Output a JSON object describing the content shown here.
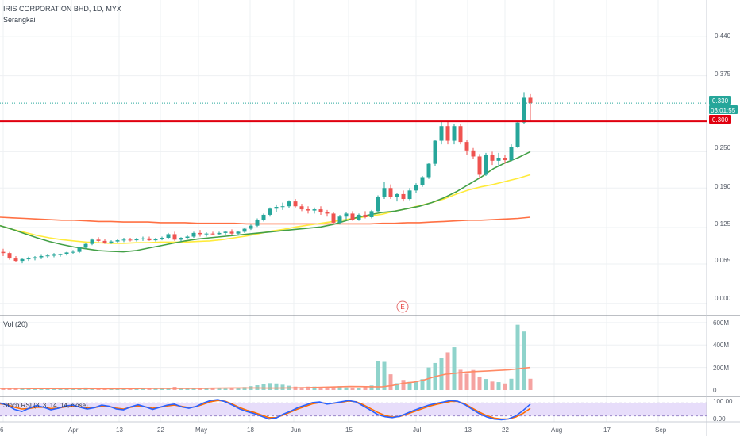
{
  "header": {
    "symbol_title": "IRIS CORPORATION BHD, 1D, MYX",
    "chart_style": "Serangkai"
  },
  "price_panel": {
    "y_ticks": [
      "0.440",
      "0.375",
      "0.250",
      "0.190",
      "0.125",
      "0.065",
      "0.000"
    ],
    "last_price_label": "0.330",
    "countdown_label": "03:01:55",
    "resistance_label": "0.300",
    "earnings_marker": "E"
  },
  "volume_panel": {
    "label": "Vol (20)",
    "y_ticks": [
      "600M",
      "400M",
      "200M",
      "0"
    ]
  },
  "stoch_panel": {
    "label": "Stoch RSI (3, 3, 14, 14, close)",
    "y_ticks": [
      "100.00",
      "0.00"
    ]
  },
  "time_axis": {
    "ticks": [
      "6",
      "Apr",
      "13",
      "22",
      "May",
      "18",
      "Jun",
      "15",
      "Jul",
      "13",
      "22",
      "Aug",
      "17",
      "Sep"
    ]
  },
  "colors": {
    "up": "#26a69a",
    "down": "#ef5350",
    "ma_fast": "#43a047",
    "ma_mid": "#ffeb3b",
    "ma_slow": "#ff7043",
    "resistance": "#e0000f",
    "last_price": "#26a69a",
    "stoch_k": "#2962ff",
    "stoch_d": "#ff6d00",
    "stoch_band": "#b39ddb"
  },
  "chart_data": {
    "type": "candlestick",
    "price_range": [
      -0.02,
      0.5
    ],
    "resistance_level": 0.3,
    "last_price": 0.33,
    "candles": [
      [
        0.085,
        0.09,
        0.078,
        0.083
      ],
      [
        0.083,
        0.085,
        0.072,
        0.074
      ],
      [
        0.074,
        0.078,
        0.068,
        0.07
      ],
      [
        0.07,
        0.075,
        0.066,
        0.073
      ],
      [
        0.073,
        0.077,
        0.07,
        0.074
      ],
      [
        0.074,
        0.078,
        0.071,
        0.076
      ],
      [
        0.076,
        0.08,
        0.073,
        0.078
      ],
      [
        0.078,
        0.081,
        0.075,
        0.079
      ],
      [
        0.079,
        0.083,
        0.076,
        0.08
      ],
      [
        0.08,
        0.082,
        0.077,
        0.081
      ],
      [
        0.081,
        0.085,
        0.079,
        0.084
      ],
      [
        0.084,
        0.088,
        0.081,
        0.085
      ],
      [
        0.085,
        0.093,
        0.083,
        0.092
      ],
      [
        0.092,
        0.1,
        0.09,
        0.098
      ],
      [
        0.098,
        0.107,
        0.096,
        0.105
      ],
      [
        0.105,
        0.109,
        0.101,
        0.103
      ],
      [
        0.103,
        0.106,
        0.098,
        0.1
      ],
      [
        0.1,
        0.104,
        0.098,
        0.102
      ],
      [
        0.102,
        0.106,
        0.1,
        0.104
      ],
      [
        0.104,
        0.108,
        0.101,
        0.105
      ],
      [
        0.105,
        0.108,
        0.102,
        0.104
      ],
      [
        0.104,
        0.108,
        0.102,
        0.106
      ],
      [
        0.106,
        0.11,
        0.103,
        0.107
      ],
      [
        0.107,
        0.11,
        0.103,
        0.104
      ],
      [
        0.104,
        0.108,
        0.102,
        0.106
      ],
      [
        0.106,
        0.11,
        0.104,
        0.108
      ],
      [
        0.108,
        0.116,
        0.106,
        0.114
      ],
      [
        0.114,
        0.118,
        0.103,
        0.105
      ],
      [
        0.105,
        0.109,
        0.102,
        0.108
      ],
      [
        0.108,
        0.112,
        0.106,
        0.11
      ],
      [
        0.11,
        0.118,
        0.108,
        0.116
      ],
      [
        0.116,
        0.121,
        0.11,
        0.114
      ],
      [
        0.114,
        0.117,
        0.11,
        0.115
      ],
      [
        0.115,
        0.118,
        0.112,
        0.114
      ],
      [
        0.114,
        0.118,
        0.112,
        0.116
      ],
      [
        0.116,
        0.119,
        0.113,
        0.118
      ],
      [
        0.118,
        0.122,
        0.112,
        0.115
      ],
      [
        0.115,
        0.119,
        0.113,
        0.118
      ],
      [
        0.118,
        0.125,
        0.116,
        0.123
      ],
      [
        0.123,
        0.13,
        0.121,
        0.128
      ],
      [
        0.128,
        0.14,
        0.126,
        0.138
      ],
      [
        0.138,
        0.148,
        0.135,
        0.146
      ],
      [
        0.146,
        0.158,
        0.143,
        0.156
      ],
      [
        0.156,
        0.163,
        0.15,
        0.159
      ],
      [
        0.159,
        0.166,
        0.154,
        0.16
      ],
      [
        0.16,
        0.17,
        0.157,
        0.168
      ],
      [
        0.168,
        0.172,
        0.158,
        0.16
      ],
      [
        0.16,
        0.164,
        0.152,
        0.155
      ],
      [
        0.155,
        0.16,
        0.148,
        0.153
      ],
      [
        0.153,
        0.158,
        0.148,
        0.155
      ],
      [
        0.155,
        0.16,
        0.146,
        0.15
      ],
      [
        0.15,
        0.154,
        0.143,
        0.148
      ],
      [
        0.148,
        0.15,
        0.13,
        0.133
      ],
      [
        0.133,
        0.146,
        0.13,
        0.143
      ],
      [
        0.143,
        0.15,
        0.138,
        0.148
      ],
      [
        0.148,
        0.152,
        0.136,
        0.138
      ],
      [
        0.138,
        0.148,
        0.136,
        0.146
      ],
      [
        0.146,
        0.152,
        0.14,
        0.142
      ],
      [
        0.142,
        0.154,
        0.14,
        0.152
      ],
      [
        0.152,
        0.178,
        0.15,
        0.176
      ],
      [
        0.176,
        0.2,
        0.172,
        0.19
      ],
      [
        0.19,
        0.196,
        0.172,
        0.175
      ],
      [
        0.175,
        0.182,
        0.168,
        0.18
      ],
      [
        0.18,
        0.186,
        0.168,
        0.172
      ],
      [
        0.172,
        0.19,
        0.17,
        0.186
      ],
      [
        0.186,
        0.198,
        0.182,
        0.195
      ],
      [
        0.195,
        0.21,
        0.192,
        0.208
      ],
      [
        0.208,
        0.232,
        0.205,
        0.23
      ],
      [
        0.23,
        0.27,
        0.226,
        0.268
      ],
      [
        0.268,
        0.3,
        0.262,
        0.292
      ],
      [
        0.292,
        0.3,
        0.262,
        0.268
      ],
      [
        0.268,
        0.296,
        0.262,
        0.292
      ],
      [
        0.292,
        0.296,
        0.262,
        0.266
      ],
      [
        0.266,
        0.27,
        0.245,
        0.252
      ],
      [
        0.252,
        0.256,
        0.238,
        0.242
      ],
      [
        0.242,
        0.246,
        0.205,
        0.212
      ],
      [
        0.212,
        0.248,
        0.21,
        0.245
      ],
      [
        0.245,
        0.25,
        0.228,
        0.235
      ],
      [
        0.235,
        0.248,
        0.226,
        0.24
      ],
      [
        0.24,
        0.245,
        0.23,
        0.236
      ],
      [
        0.236,
        0.262,
        0.234,
        0.258
      ],
      [
        0.258,
        0.3,
        0.256,
        0.298
      ],
      [
        0.298,
        0.348,
        0.296,
        0.34
      ],
      [
        0.34,
        0.346,
        0.3,
        0.33
      ]
    ],
    "ma_fast": [
      0.128,
      0.122,
      0.115,
      0.108,
      0.102,
      0.097,
      0.093,
      0.09,
      0.087,
      0.086,
      0.085,
      0.087,
      0.091,
      0.095,
      0.099,
      0.103,
      0.106,
      0.108,
      0.11,
      0.112,
      0.114,
      0.116,
      0.118,
      0.12,
      0.122,
      0.124,
      0.126,
      0.13,
      0.136,
      0.142,
      0.146,
      0.15,
      0.152,
      0.156,
      0.16,
      0.166,
      0.174,
      0.184,
      0.196,
      0.208,
      0.222,
      0.232,
      0.24,
      0.25
    ],
    "ma_mid": [
      0.128,
      0.122,
      0.117,
      0.112,
      0.108,
      0.105,
      0.103,
      0.101,
      0.1,
      0.099,
      0.099,
      0.1,
      0.1,
      0.101,
      0.101,
      0.101,
      0.102,
      0.103,
      0.105,
      0.108,
      0.111,
      0.115,
      0.119,
      0.122,
      0.126,
      0.129,
      0.132,
      0.135,
      0.138,
      0.141,
      0.144,
      0.147,
      0.152,
      0.156,
      0.161,
      0.166,
      0.172,
      0.18,
      0.187,
      0.192,
      0.196,
      0.201,
      0.206,
      0.212
    ],
    "ma_slow": [
      0.142,
      0.141,
      0.14,
      0.139,
      0.138,
      0.137,
      0.137,
      0.136,
      0.135,
      0.135,
      0.134,
      0.134,
      0.134,
      0.133,
      0.133,
      0.133,
      0.132,
      0.132,
      0.132,
      0.132,
      0.131,
      0.131,
      0.131,
      0.131,
      0.131,
      0.131,
      0.131,
      0.131,
      0.131,
      0.131,
      0.131,
      0.132,
      0.132,
      0.133,
      0.133,
      0.134,
      0.135,
      0.136,
      0.137,
      0.137,
      0.138,
      0.139,
      0.14,
      0.142
    ],
    "volume": {
      "range": [
        0,
        620
      ],
      "values": [
        18,
        15,
        14,
        12,
        12,
        11,
        12,
        10,
        9,
        10,
        11,
        10,
        14,
        22,
        18,
        13,
        10,
        10,
        11,
        11,
        10,
        12,
        12,
        14,
        10,
        11,
        13,
        28,
        17,
        14,
        17,
        12,
        11,
        12,
        13,
        12,
        15,
        14,
        26,
        34,
        42,
        54,
        61,
        58,
        47,
        38,
        30,
        26,
        30,
        30,
        24,
        22,
        30,
        34,
        23,
        22,
        20,
        26,
        40,
        255,
        250,
        140,
        60,
        90,
        72,
        82,
        97,
        200,
        240,
        285,
        335,
        380,
        180,
        145,
        178,
        120,
        98,
        75,
        70,
        58,
        100,
        580,
        520,
        100
      ],
      "ma": [
        14,
        14,
        14,
        13,
        13,
        13,
        12,
        12,
        12,
        12,
        11,
        11,
        12,
        13,
        14,
        14,
        14,
        14,
        15,
        15,
        16,
        17,
        18,
        18,
        18,
        17,
        17,
        18,
        19,
        21,
        23,
        26,
        29,
        31,
        30,
        29,
        28,
        40,
        60,
        70,
        90,
        120,
        140,
        150,
        160,
        165,
        170,
        175,
        180,
        190,
        200
      ]
    },
    "stoch_rsi": {
      "range": [
        0,
        100
      ],
      "k": [
        80,
        70,
        50,
        40,
        55,
        68,
        60,
        48,
        55,
        66,
        70,
        60,
        52,
        58,
        70,
        65,
        52,
        48,
        62,
        72,
        62,
        50,
        60,
        70,
        75,
        62,
        55,
        64,
        80,
        92,
        96,
        86,
        70,
        52,
        40,
        30,
        18,
        5,
        10,
        28,
        42,
        58,
        70,
        82,
        85,
        75,
        80,
        86,
        92,
        85,
        66,
        46,
        26,
        16,
        12,
        18,
        32,
        46,
        58,
        70,
        78,
        85,
        92,
        88,
        72,
        50,
        30,
        15,
        5,
        2,
        6,
        20,
        45,
        75
      ],
      "d": [
        76,
        72,
        60,
        52,
        54,
        60,
        60,
        54,
        56,
        62,
        66,
        62,
        57,
        58,
        65,
        64,
        56,
        52,
        60,
        66,
        62,
        55,
        60,
        66,
        70,
        64,
        58,
        63,
        74,
        86,
        92,
        88,
        75,
        58,
        46,
        36,
        24,
        12,
        12,
        24,
        38,
        52,
        64,
        76,
        82,
        78,
        79,
        84,
        89,
        86,
        72,
        54,
        36,
        22,
        15,
        17,
        28,
        40,
        52,
        64,
        73,
        80,
        87,
        87,
        76,
        56,
        37,
        21,
        10,
        5,
        6,
        15,
        32,
        55
      ]
    },
    "x_ticks": [
      "6",
      "Apr",
      "13",
      "22",
      "May",
      "18",
      "Jun",
      "15",
      "Jul",
      "13",
      "22",
      "Aug",
      "17",
      "Sep"
    ]
  }
}
